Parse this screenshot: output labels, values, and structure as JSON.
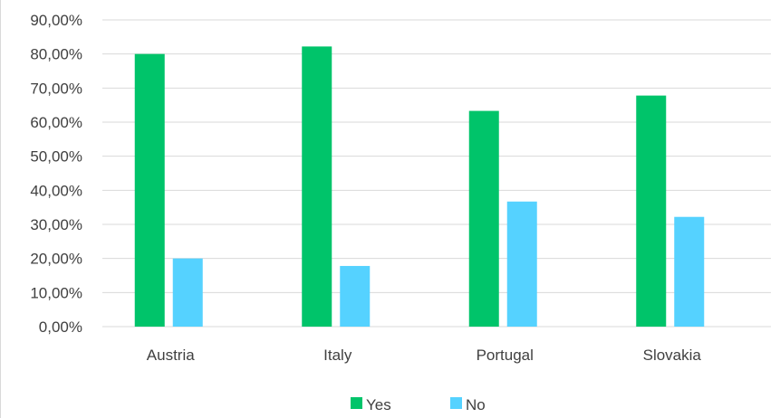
{
  "chart_data": {
    "type": "bar",
    "title": "",
    "xlabel": "",
    "ylabel": "",
    "categories": [
      "Austria",
      "Italy",
      "Portugal",
      "Slovakia"
    ],
    "series": [
      {
        "name": "Yes",
        "color": "#00c46a",
        "values": [
          80.0,
          82.2,
          63.3,
          67.8
        ]
      },
      {
        "name": "No",
        "color": "#55d2ff",
        "values": [
          20.0,
          17.8,
          36.7,
          32.2
        ]
      }
    ],
    "ylim": [
      0,
      90
    ],
    "yticks": [
      0,
      10,
      20,
      30,
      40,
      50,
      60,
      70,
      80,
      90
    ],
    "ytick_labels": [
      "0,00%",
      "10,00%",
      "20,00%",
      "30,00%",
      "40,00%",
      "50,00%",
      "60,00%",
      "70,00%",
      "80,00%",
      "90,00%"
    ],
    "grid": true,
    "legend_position": "bottom-center"
  }
}
